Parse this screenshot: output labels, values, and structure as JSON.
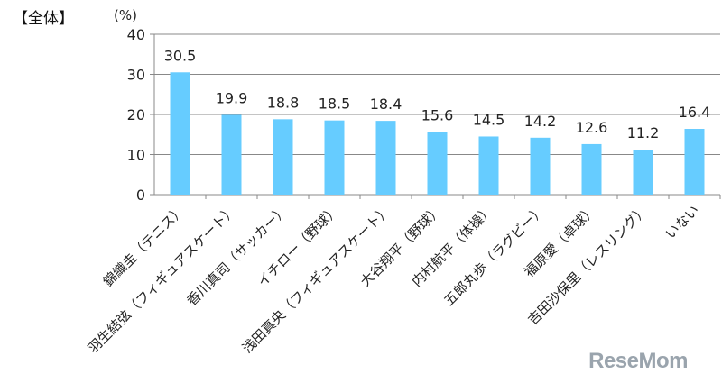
{
  "title": "【全体】",
  "watermark": "ReseMom",
  "chart_data": {
    "type": "bar",
    "unit_label": "(%)",
    "categories": [
      "錦織圭（テニス）",
      "羽生結弦（フィギュアスケート）",
      "香川真司（サッカー）",
      "イチロー（野球）",
      "浅田真央（フィギュアスケート）",
      "大谷翔平（野球）",
      "内村航平（体操）",
      "五郎丸歩（ラグビー）",
      "福原愛（卓球）",
      "吉田沙保里（レスリング）",
      "いない"
    ],
    "values": [
      30.5,
      19.9,
      18.8,
      18.5,
      18.4,
      15.6,
      14.5,
      14.2,
      12.6,
      11.2,
      16.4
    ],
    "value_labels": [
      "30.5",
      "19.9",
      "18.8",
      "18.5",
      "18.4",
      "15.6",
      "14.5",
      "14.2",
      "12.6",
      "11.2",
      "16.4"
    ],
    "ylim": [
      0,
      40
    ],
    "yticks": [
      "0",
      "10",
      "20",
      "30",
      "40"
    ],
    "grid": true,
    "bar_color": "#66ccff"
  }
}
